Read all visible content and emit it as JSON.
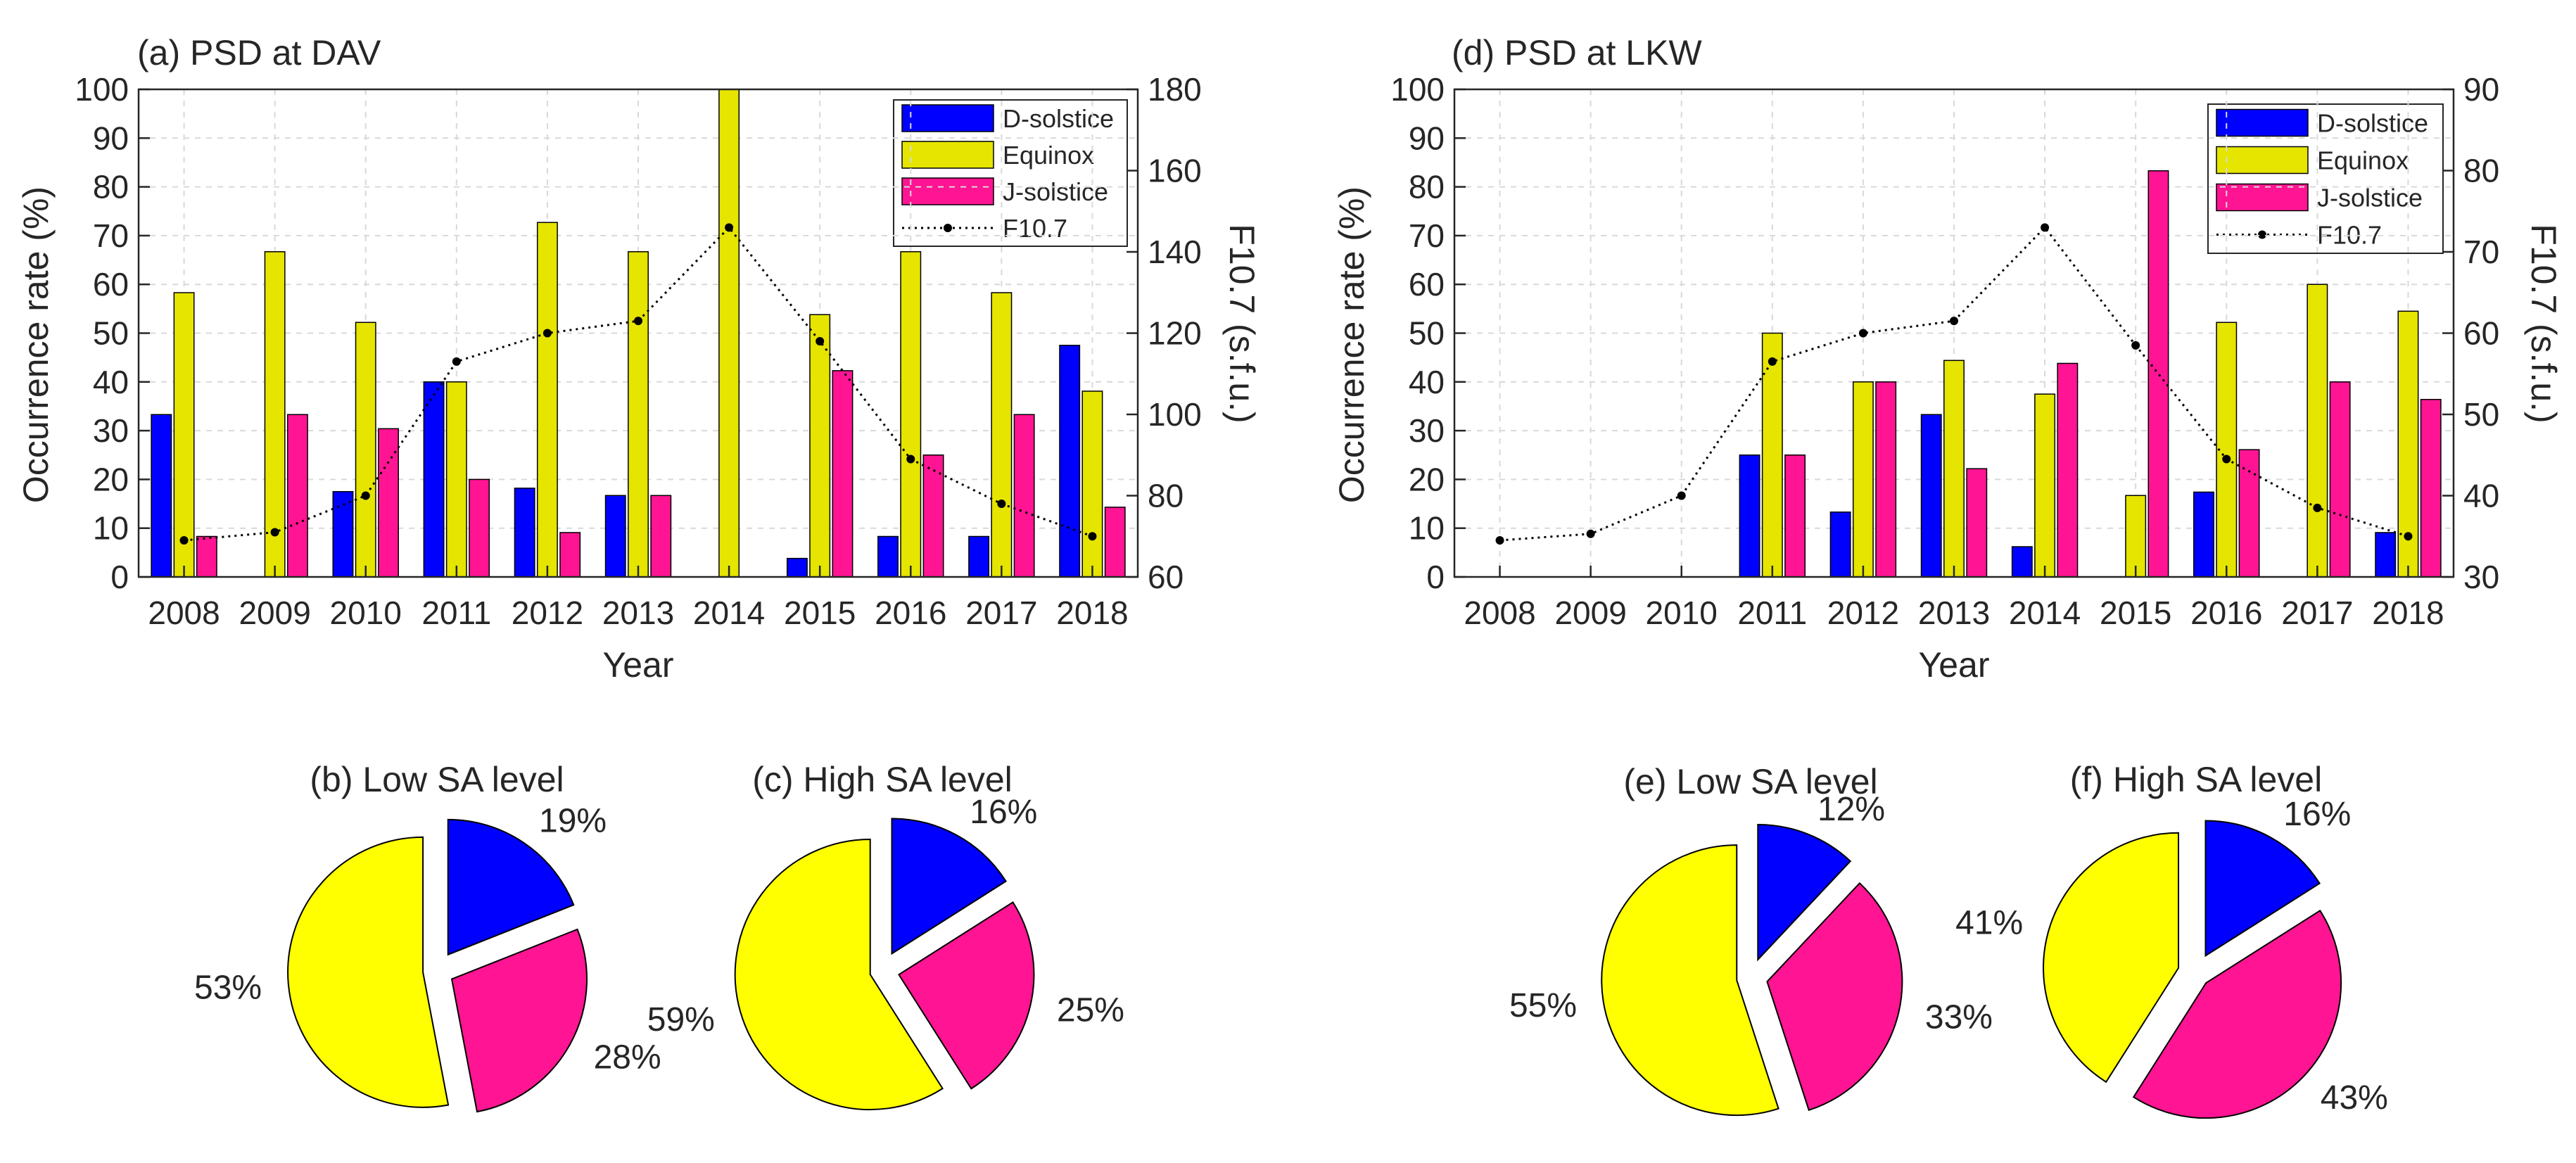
{
  "chart_data": [
    {
      "type": "bar",
      "id": "a",
      "title": "(a) PSD at DAV",
      "xlabel": "Year",
      "ylabel": "Occurrence rate (%)",
      "y2label": "F10.7 (s.f.u.)",
      "categories": [
        "2008",
        "2009",
        "2010",
        "2011",
        "2012",
        "2013",
        "2014",
        "2015",
        "2016",
        "2017",
        "2018"
      ],
      "ylim": [
        0,
        100
      ],
      "yticks": [
        "0",
        "10",
        "20",
        "30",
        "40",
        "50",
        "60",
        "70",
        "80",
        "90",
        "100"
      ],
      "y2lim": [
        60,
        180
      ],
      "y2ticks": [
        "60",
        "80",
        "100",
        "120",
        "140",
        "160",
        "180"
      ],
      "grid": true,
      "legend_position": "top-right",
      "series": [
        {
          "name": "D-solstice",
          "color": "#0000FF",
          "values": [
            33.3,
            0,
            17.5,
            40,
            18.2,
            16.7,
            0,
            3.8,
            8.3,
            8.3,
            47.5
          ]
        },
        {
          "name": "Equinox",
          "color": "#E5E500",
          "values": [
            58.3,
            66.7,
            52.2,
            40,
            72.7,
            66.7,
            100,
            53.8,
            66.7,
            58.3,
            38.1
          ]
        },
        {
          "name": "J-solstice",
          "color": "#FF1493",
          "values": [
            8.3,
            33.3,
            30.4,
            20,
            9.1,
            16.7,
            0,
            42.3,
            25,
            33.3,
            14.3
          ]
        }
      ],
      "line": {
        "name": "F10.7",
        "axis": "right",
        "values": [
          69,
          71,
          80,
          113,
          120,
          123,
          146,
          118,
          89,
          78,
          70
        ]
      }
    },
    {
      "type": "bar",
      "id": "d",
      "title": "(d) PSD at LKW",
      "xlabel": "Year",
      "ylabel": "Occurrence rate (%)",
      "y2label": "F10.7 (s.f.u.)",
      "categories": [
        "2008",
        "2009",
        "2010",
        "2011",
        "2012",
        "2013",
        "2014",
        "2015",
        "2016",
        "2017",
        "2018"
      ],
      "ylim": [
        0,
        100
      ],
      "yticks": [
        "0",
        "10",
        "20",
        "30",
        "40",
        "50",
        "60",
        "70",
        "80",
        "90",
        "100"
      ],
      "y2lim": [
        30,
        90
      ],
      "y2ticks": [
        "30",
        "40",
        "50",
        "60",
        "70",
        "80",
        "90"
      ],
      "grid": true,
      "legend_position": "top-right",
      "series": [
        {
          "name": "D-solstice",
          "color": "#0000FF",
          "values": [
            0,
            0,
            0,
            25,
            13.3,
            33.3,
            6.2,
            0,
            17.4,
            0,
            9.1
          ]
        },
        {
          "name": "Equinox",
          "color": "#E5E500",
          "values": [
            0,
            0,
            0,
            50,
            40,
            44.4,
            37.5,
            16.7,
            52.2,
            60,
            54.5
          ]
        },
        {
          "name": "J-solstice",
          "color": "#FF1493",
          "values": [
            0,
            0,
            0,
            25,
            40,
            22.2,
            43.8,
            83.3,
            26.1,
            40,
            36.4
          ]
        }
      ],
      "line": {
        "name": "F10.7",
        "axis": "right",
        "values": [
          34.5,
          35.3,
          40,
          56.5,
          60,
          61.5,
          73,
          58.5,
          44.5,
          38.5,
          35
        ]
      }
    },
    {
      "type": "pie",
      "id": "b",
      "title": "(b) Low SA level",
      "slices": [
        {
          "name": "D-solstice",
          "value": 19,
          "label": "19%",
          "color": "#0000FF"
        },
        {
          "name": "J-solstice",
          "value": 28,
          "label": "28%",
          "color": "#FF1493"
        },
        {
          "name": "Equinox",
          "value": 53,
          "label": "53%",
          "color": "#FFFF00"
        }
      ]
    },
    {
      "type": "pie",
      "id": "c",
      "title": "(c) High SA level",
      "slices": [
        {
          "name": "D-solstice",
          "value": 16,
          "label": "16%",
          "color": "#0000FF"
        },
        {
          "name": "J-solstice",
          "value": 25,
          "label": "25%",
          "color": "#FF1493"
        },
        {
          "name": "Equinox",
          "value": 59,
          "label": "59%",
          "color": "#FFFF00"
        }
      ]
    },
    {
      "type": "pie",
      "id": "e",
      "title": "(e) Low SA level",
      "slices": [
        {
          "name": "D-solstice",
          "value": 12,
          "label": "12%",
          "color": "#0000FF"
        },
        {
          "name": "J-solstice",
          "value": 33,
          "label": "33%",
          "color": "#FF1493"
        },
        {
          "name": "Equinox",
          "value": 55,
          "label": "55%",
          "color": "#FFFF00"
        }
      ]
    },
    {
      "type": "pie",
      "id": "f",
      "title": "(f) High SA level",
      "slices": [
        {
          "name": "D-solstice",
          "value": 16,
          "label": "16%",
          "color": "#0000FF"
        },
        {
          "name": "J-solstice",
          "value": 43,
          "label": "43%",
          "color": "#FF1493"
        },
        {
          "name": "Equinox",
          "value": 41,
          "label": "41%",
          "color": "#FFFF00"
        }
      ]
    }
  ]
}
